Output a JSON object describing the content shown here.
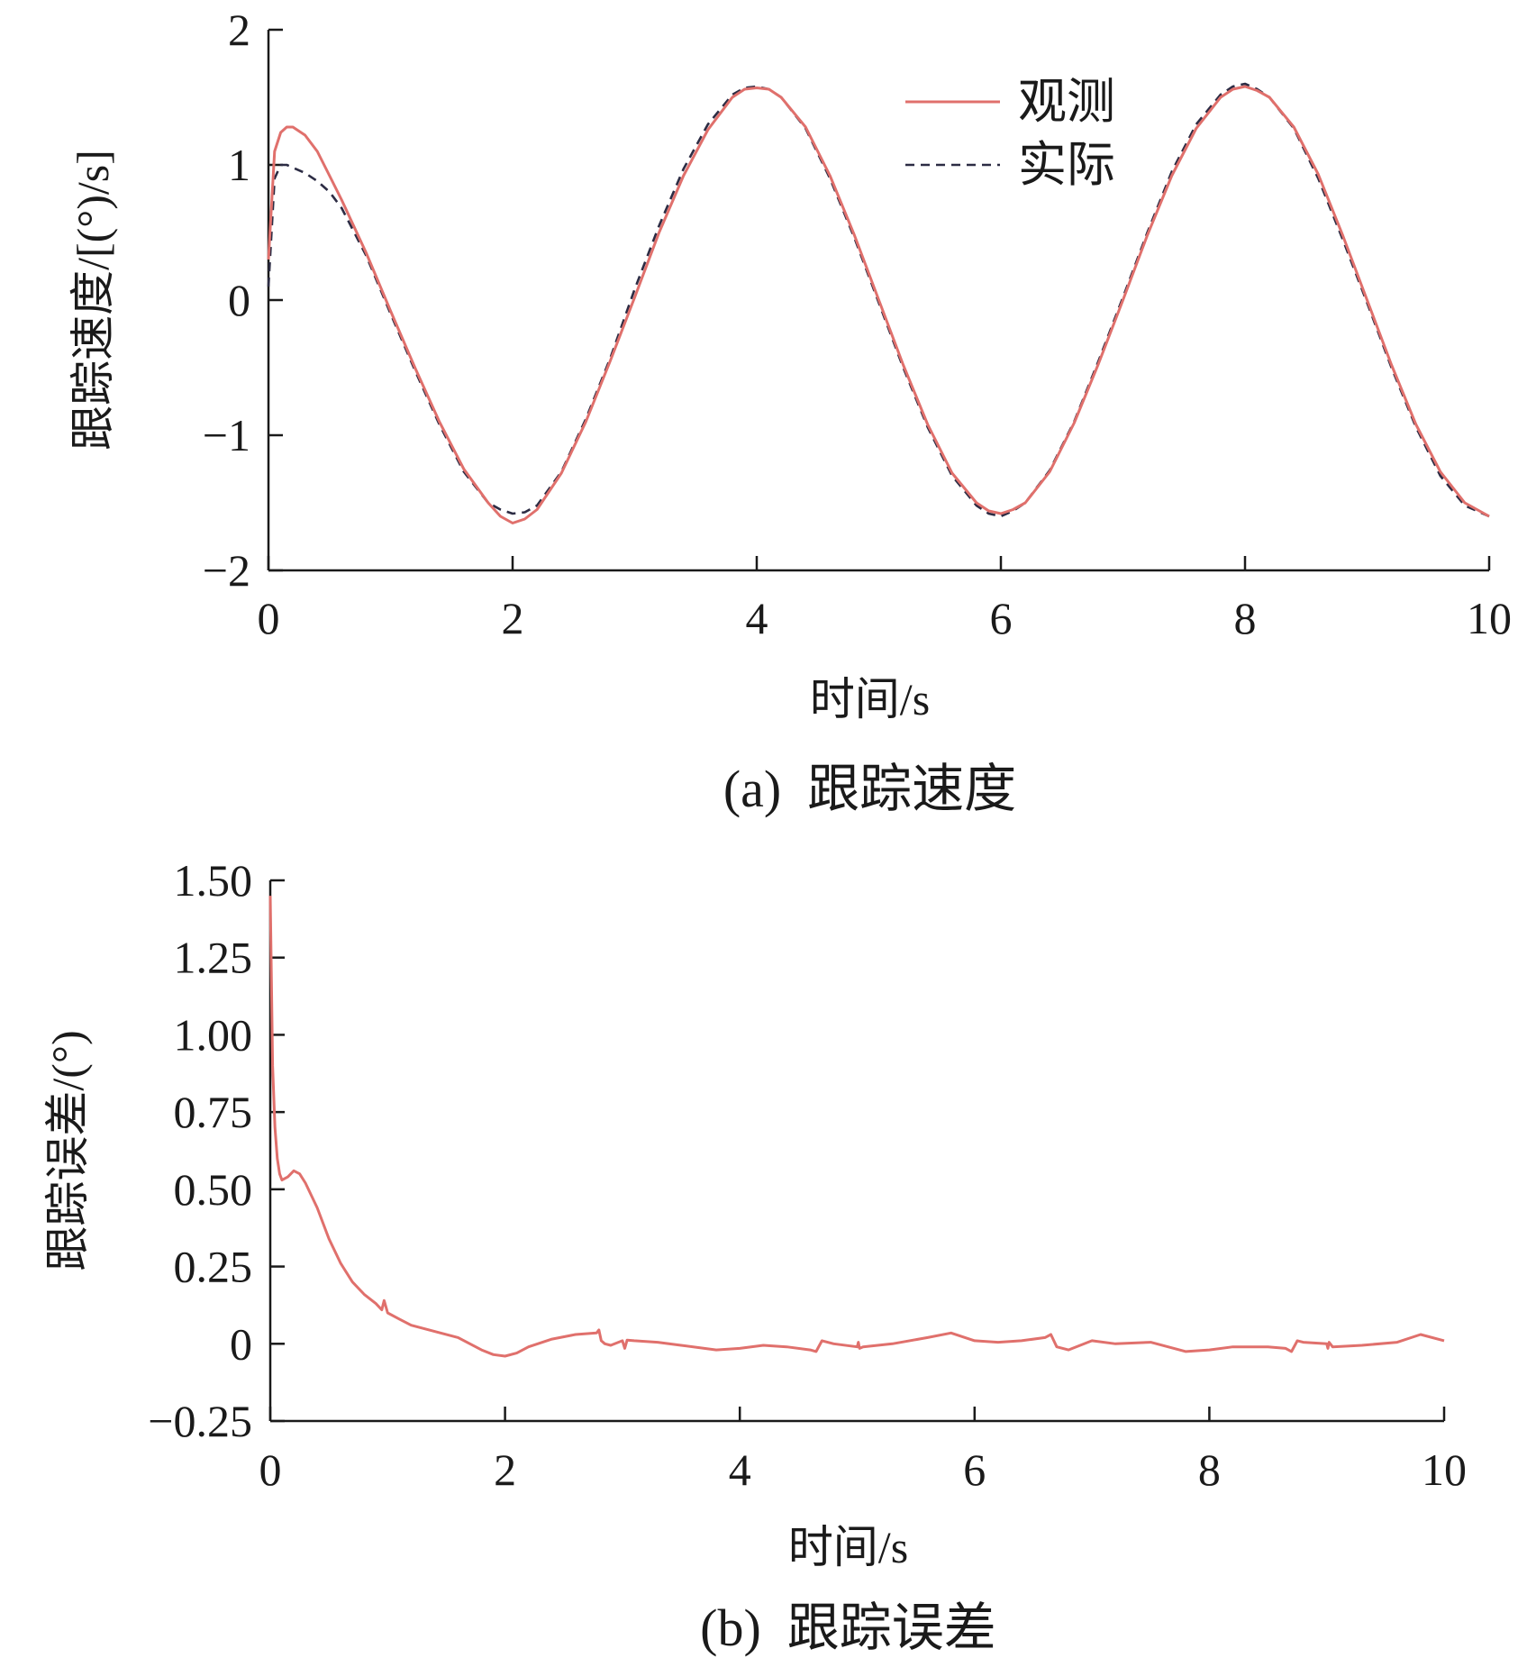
{
  "colors": {
    "observed": "#e0706c",
    "actual": "#2c2c44",
    "axis": "#1a1a1a",
    "background": "#ffffff"
  },
  "chart_data": [
    {
      "id": "a",
      "type": "line",
      "caption": "(a)  跟踪速度",
      "xlabel": "时间/s",
      "ylabel": "跟踪速度/[(°)/s]",
      "xlim": [
        0,
        10
      ],
      "ylim": [
        -2,
        2
      ],
      "x_ticks": [
        0,
        2,
        4,
        6,
        8,
        10
      ],
      "x_tick_labels": [
        "0",
        "2",
        "4",
        "6",
        "8",
        "10"
      ],
      "y_ticks": [
        -2,
        -1,
        0,
        1,
        2
      ],
      "y_tick_labels": [
        "−2",
        "−1",
        "0",
        "1",
        "2"
      ],
      "grid": false,
      "legend_position": "top-right",
      "series": [
        {
          "name": "观测",
          "style": "solid",
          "color_key": "observed",
          "x": [
            0,
            0.05,
            0.1,
            0.15,
            0.2,
            0.3,
            0.4,
            0.5,
            0.6,
            0.8,
            1.0,
            1.2,
            1.4,
            1.6,
            1.8,
            1.9,
            2.0,
            2.1,
            2.2,
            2.4,
            2.6,
            2.8,
            3.0,
            3.2,
            3.4,
            3.6,
            3.8,
            3.9,
            4.0,
            4.1,
            4.2,
            4.4,
            4.6,
            4.8,
            5.0,
            5.2,
            5.4,
            5.6,
            5.8,
            5.9,
            6.0,
            6.1,
            6.2,
            6.4,
            6.6,
            6.8,
            7.0,
            7.2,
            7.4,
            7.6,
            7.8,
            7.9,
            8.0,
            8.1,
            8.2,
            8.4,
            8.6,
            8.8,
            9.0,
            9.2,
            9.4,
            9.6,
            9.8,
            10.0
          ],
          "y": [
            0.3,
            1.1,
            1.24,
            1.28,
            1.28,
            1.22,
            1.1,
            0.92,
            0.74,
            0.35,
            -0.08,
            -0.5,
            -0.9,
            -1.25,
            -1.5,
            -1.6,
            -1.65,
            -1.62,
            -1.55,
            -1.28,
            -0.9,
            -0.45,
            0.02,
            0.5,
            0.92,
            1.26,
            1.5,
            1.56,
            1.57,
            1.56,
            1.5,
            1.28,
            0.92,
            0.48,
            0.0,
            -0.48,
            -0.92,
            -1.28,
            -1.5,
            -1.56,
            -1.58,
            -1.55,
            -1.5,
            -1.27,
            -0.91,
            -0.47,
            0.0,
            0.48,
            0.92,
            1.27,
            1.5,
            1.56,
            1.58,
            1.55,
            1.5,
            1.28,
            0.93,
            0.48,
            0.0,
            -0.48,
            -0.92,
            -1.27,
            -1.5,
            -1.6
          ]
        },
        {
          "name": "实际",
          "style": "dashed",
          "color_key": "actual",
          "x": [
            0,
            0.05,
            0.1,
            0.15,
            0.2,
            0.3,
            0.4,
            0.5,
            0.6,
            0.8,
            1.0,
            1.2,
            1.4,
            1.6,
            1.8,
            1.9,
            2.0,
            2.1,
            2.2,
            2.4,
            2.6,
            2.8,
            3.0,
            3.2,
            3.4,
            3.6,
            3.8,
            3.9,
            4.0,
            4.1,
            4.2,
            4.4,
            4.6,
            4.8,
            5.0,
            5.2,
            5.4,
            5.6,
            5.8,
            5.9,
            6.0,
            6.1,
            6.2,
            6.4,
            6.6,
            6.8,
            7.0,
            7.2,
            7.4,
            7.6,
            7.8,
            7.9,
            8.0,
            8.1,
            8.2,
            8.4,
            8.6,
            8.8,
            9.0,
            9.2,
            9.4,
            9.6,
            9.8,
            10.0
          ],
          "y": [
            0.1,
            0.9,
            1.0,
            1.0,
            0.98,
            0.94,
            0.88,
            0.8,
            0.68,
            0.33,
            -0.1,
            -0.52,
            -0.92,
            -1.27,
            -1.5,
            -1.55,
            -1.58,
            -1.57,
            -1.52,
            -1.27,
            -0.88,
            -0.43,
            0.08,
            0.55,
            0.97,
            1.3,
            1.52,
            1.57,
            1.58,
            1.56,
            1.5,
            1.27,
            0.9,
            0.46,
            -0.02,
            -0.5,
            -0.94,
            -1.3,
            -1.52,
            -1.58,
            -1.6,
            -1.56,
            -1.5,
            -1.26,
            -0.9,
            -0.45,
            0.02,
            0.5,
            0.95,
            1.3,
            1.52,
            1.58,
            1.6,
            1.56,
            1.5,
            1.27,
            0.9,
            0.45,
            -0.02,
            -0.5,
            -0.94,
            -1.3,
            -1.52,
            -1.6
          ]
        }
      ]
    },
    {
      "id": "b",
      "type": "line",
      "caption": "(b)  跟踪误差",
      "xlabel": "时间/s",
      "ylabel": "跟踪误差/(°)",
      "xlim": [
        0,
        10
      ],
      "ylim": [
        -0.25,
        1.5
      ],
      "x_ticks": [
        0,
        2,
        4,
        6,
        8,
        10
      ],
      "x_tick_labels": [
        "0",
        "2",
        "4",
        "6",
        "8",
        "10"
      ],
      "y_ticks": [
        -0.25,
        0,
        0.25,
        0.5,
        0.75,
        1.0,
        1.25,
        1.5
      ],
      "y_tick_labels": [
        "−0.25",
        "0",
        "0.25",
        "0.50",
        "0.75",
        "1.00",
        "1.25",
        "1.50"
      ],
      "grid": false,
      "series": [
        {
          "color_key": "observed",
          "style": "solid",
          "x": [
            0,
            0.02,
            0.04,
            0.06,
            0.08,
            0.1,
            0.15,
            0.2,
            0.25,
            0.3,
            0.4,
            0.5,
            0.6,
            0.7,
            0.8,
            0.9,
            0.95,
            0.97,
            1.0,
            1.1,
            1.2,
            1.4,
            1.6,
            1.8,
            1.9,
            2.0,
            2.1,
            2.2,
            2.4,
            2.6,
            2.78,
            2.8,
            2.82,
            2.85,
            2.9,
            3.0,
            3.02,
            3.04,
            3.1,
            3.3,
            3.5,
            3.8,
            4.0,
            4.2,
            4.4,
            4.6,
            4.65,
            4.7,
            4.8,
            5.0,
            5.01,
            5.02,
            5.05,
            5.3,
            5.6,
            5.8,
            6.0,
            6.2,
            6.4,
            6.6,
            6.65,
            6.7,
            6.8,
            7.0,
            7.2,
            7.5,
            7.8,
            8.0,
            8.2,
            8.5,
            8.65,
            8.7,
            8.75,
            8.8,
            9.0,
            9.01,
            9.02,
            9.05,
            9.3,
            9.6,
            9.8,
            10.0
          ],
          "y": [
            1.45,
            0.9,
            0.7,
            0.6,
            0.55,
            0.53,
            0.54,
            0.56,
            0.55,
            0.52,
            0.44,
            0.34,
            0.26,
            0.2,
            0.16,
            0.13,
            0.11,
            0.14,
            0.1,
            0.08,
            0.06,
            0.04,
            0.02,
            -0.02,
            -0.035,
            -0.04,
            -0.03,
            -0.01,
            0.015,
            0.03,
            0.035,
            0.045,
            0.01,
            0.0,
            -0.005,
            0.01,
            -0.015,
            0.012,
            0.01,
            0.005,
            -0.005,
            -0.02,
            -0.015,
            -0.005,
            -0.01,
            -0.02,
            -0.025,
            0.01,
            0.0,
            -0.01,
            0.005,
            -0.015,
            -0.01,
            0.0,
            0.02,
            0.035,
            0.01,
            0.005,
            0.01,
            0.02,
            0.03,
            -0.01,
            -0.02,
            0.01,
            0.0,
            0.005,
            -0.025,
            -0.02,
            -0.01,
            -0.01,
            -0.015,
            -0.025,
            0.01,
            0.005,
            0.0,
            -0.015,
            0.005,
            -0.01,
            -0.005,
            0.005,
            0.03,
            0.01
          ]
        }
      ]
    }
  ]
}
